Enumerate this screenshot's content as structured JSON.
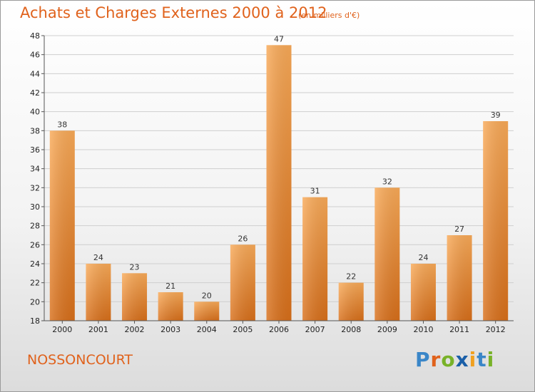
{
  "title": "Achats et Charges Externes 2000 à 2012",
  "subtitle": "(en milliers d'€)",
  "commune": "NOSSONCOURT",
  "logo": {
    "letters": [
      "P",
      "r",
      "o",
      "x",
      "i",
      "t",
      "i"
    ],
    "colors": [
      "#3a86c8",
      "#e0621c",
      "#78b228",
      "#1a5fa8",
      "#f0a020",
      "#3a86c8",
      "#78b228"
    ]
  },
  "colors": {
    "accent": "#e0621c",
    "bar_light": "#f7a85a",
    "bar_dark": "#d9731f",
    "grid": "#cfcfcf"
  },
  "chart_data": {
    "type": "bar",
    "categories": [
      "2000",
      "2001",
      "2002",
      "2003",
      "2004",
      "2005",
      "2006",
      "2007",
      "2008",
      "2009",
      "2010",
      "2011",
      "2012"
    ],
    "values": [
      38,
      24,
      23,
      21,
      20,
      26,
      47,
      31,
      22,
      32,
      24,
      27,
      39
    ],
    "ylim": [
      18,
      48
    ],
    "yticks": [
      18,
      20,
      22,
      24,
      26,
      28,
      30,
      32,
      34,
      36,
      38,
      40,
      42,
      44,
      46,
      48
    ],
    "grid": true
  }
}
